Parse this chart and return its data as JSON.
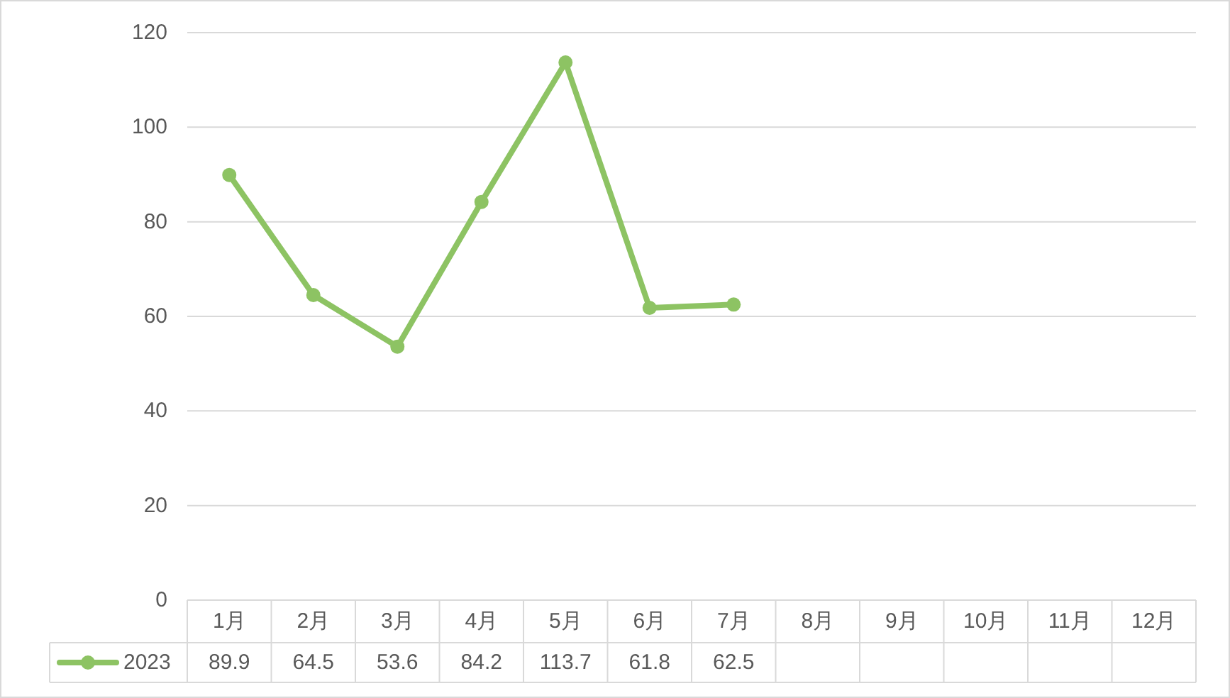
{
  "chart_data": {
    "type": "line",
    "categories": [
      "1月",
      "2月",
      "3月",
      "4月",
      "5月",
      "6月",
      "7月",
      "8月",
      "9月",
      "10月",
      "11月",
      "12月"
    ],
    "series": [
      {
        "name": "2023",
        "color": "#8dc363",
        "values": [
          89.9,
          64.5,
          53.6,
          84.2,
          113.7,
          61.8,
          62.5,
          null,
          null,
          null,
          null,
          null
        ]
      }
    ],
    "ylim": [
      0,
      120
    ],
    "yticks": [
      0,
      20,
      40,
      60,
      80,
      100,
      120
    ],
    "grid": "y",
    "legend": "bottom",
    "marker": "circle",
    "line_style": "solid",
    "data_labels": true
  }
}
